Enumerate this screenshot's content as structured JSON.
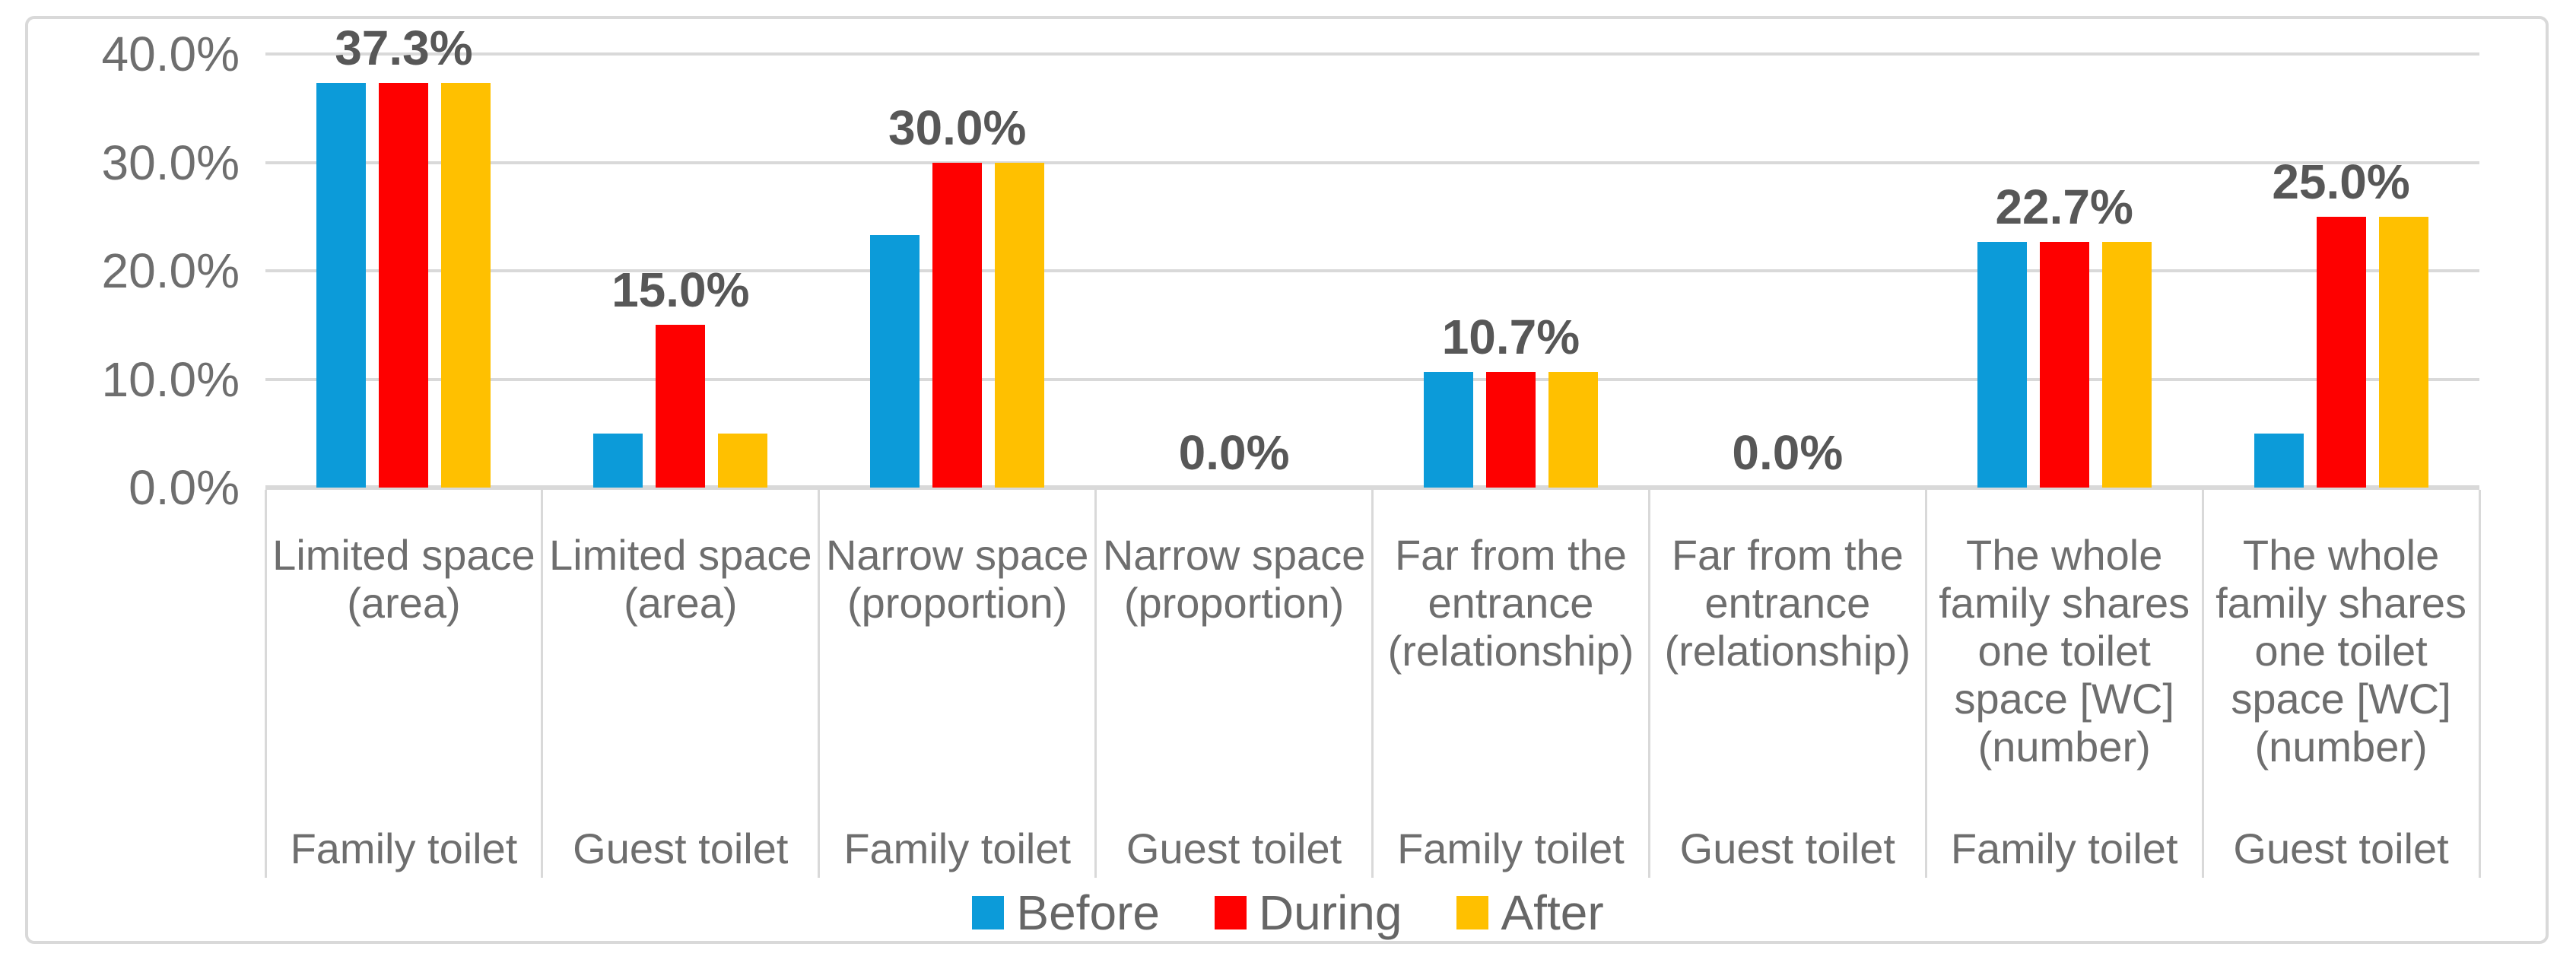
{
  "chart_data": {
    "type": "bar",
    "title": "",
    "xlabel": "",
    "ylabel": "",
    "unit": "%",
    "ylim": [
      0,
      40
    ],
    "grid": true,
    "legend_position": "bottom",
    "yticks": [
      {
        "value": 40,
        "label": "40.0%"
      },
      {
        "value": 30,
        "label": "30.0%"
      },
      {
        "value": 20,
        "label": "20.0%"
      },
      {
        "value": 10,
        "label": "10.0%"
      },
      {
        "value": 0,
        "label": "0.0%"
      }
    ],
    "series_names": [
      "Before",
      "During",
      "After"
    ],
    "series_colors": [
      "#0C9BD9",
      "#FE0000",
      "#FFC000"
    ],
    "groups": [
      {
        "criterion_lines": [
          "Limited space",
          "(area)"
        ],
        "toilet": "Family toilet",
        "values": [
          37.3,
          37.3,
          37.3
        ],
        "data_label": "37.3%"
      },
      {
        "criterion_lines": [
          "Limited space",
          "(area)"
        ],
        "toilet": "Guest toilet",
        "values": [
          5.0,
          15.0,
          5.0
        ],
        "data_label": "15.0%"
      },
      {
        "criterion_lines": [
          "Narrow space",
          "(proportion)"
        ],
        "toilet": "Family toilet",
        "values": [
          23.3,
          30.0,
          30.0
        ],
        "data_label": "30.0%"
      },
      {
        "criterion_lines": [
          "Narrow space",
          "(proportion)"
        ],
        "toilet": "Guest toilet",
        "values": [
          0.0,
          0.0,
          0.0
        ],
        "data_label": "0.0%"
      },
      {
        "criterion_lines": [
          "Far from the",
          "entrance",
          "(relationship)"
        ],
        "toilet": "Family toilet",
        "values": [
          10.7,
          10.7,
          10.7
        ],
        "data_label": "10.7%"
      },
      {
        "criterion_lines": [
          "Far from the",
          "entrance",
          "(relationship)"
        ],
        "toilet": "Guest toilet",
        "values": [
          0.0,
          0.0,
          0.0
        ],
        "data_label": "0.0%"
      },
      {
        "criterion_lines": [
          "The whole",
          "family shares",
          "one toilet",
          "space [WC]",
          "(number)"
        ],
        "toilet": "Family toilet",
        "values": [
          22.7,
          22.7,
          22.7
        ],
        "data_label": "22.7%"
      },
      {
        "criterion_lines": [
          "The whole",
          "family shares",
          "one toilet",
          "space [WC]",
          "(number)"
        ],
        "toilet": "Guest toilet",
        "values": [
          5.0,
          25.0,
          25.0
        ],
        "data_label": "25.0%"
      }
    ],
    "legend": [
      {
        "name": "Before",
        "color": "#0C9BD9"
      },
      {
        "name": "During",
        "color": "#FE0000"
      },
      {
        "name": "After",
        "color": "#FFC000"
      }
    ],
    "colors": {
      "gridline": "#D9D9D9",
      "frame_border": "#D9D9D9",
      "axis_text": "#6E6E6E",
      "data_label_text": "#575757",
      "legend_text": "#666666",
      "background": "#FFFFFF"
    }
  }
}
